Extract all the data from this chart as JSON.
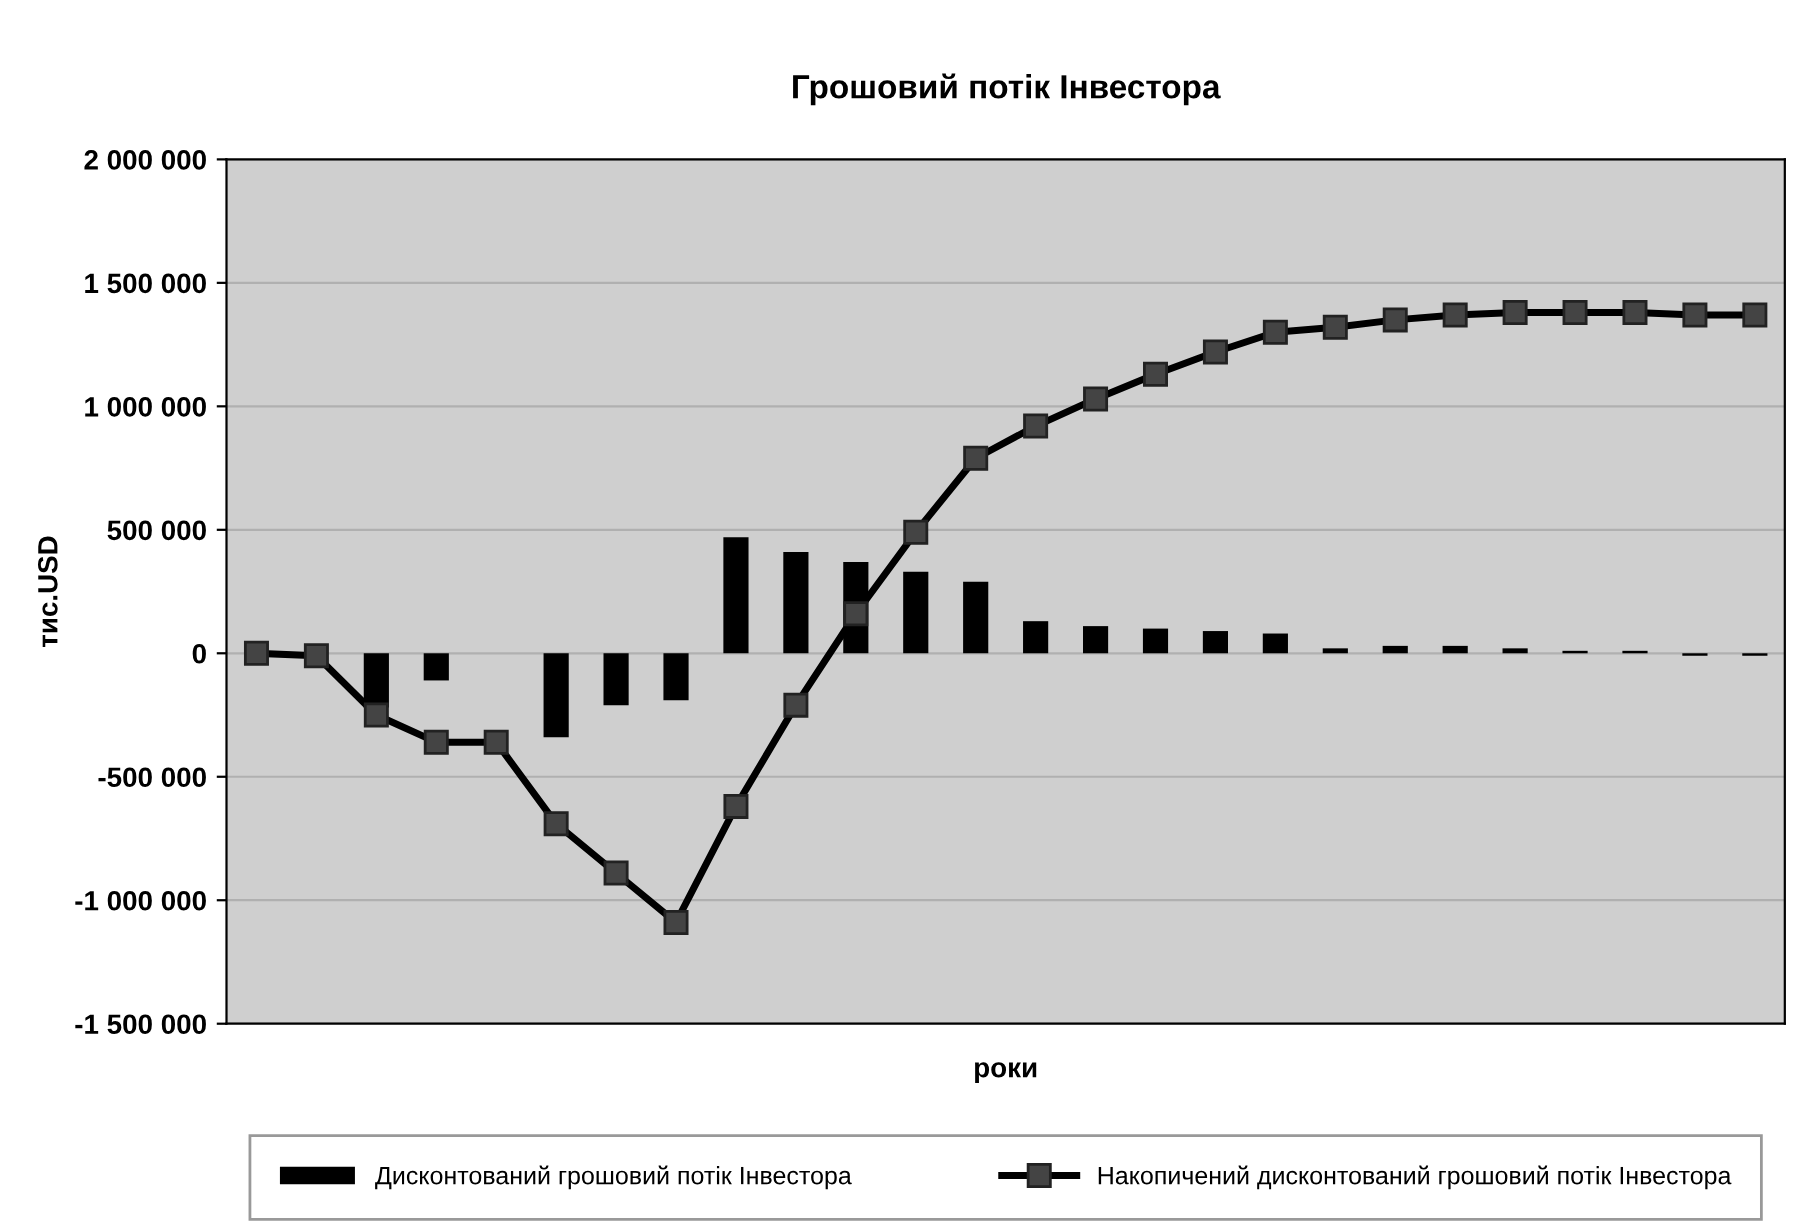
{
  "chart_data": {
    "type": "bar",
    "title": "Грошовий потік Інвестора",
    "xlabel": "роки",
    "ylabel": "тис.USD",
    "categories": [
      null,
      null,
      null,
      null,
      null,
      null,
      null,
      null,
      null,
      null,
      null,
      null,
      null,
      null,
      null,
      null,
      null,
      null,
      null,
      null,
      null,
      null,
      null,
      null,
      null,
      null
    ],
    "series": [
      {
        "name": "Дисконтований грошовий потік Інвестора",
        "color": "#000000",
        "values": [
          0,
          0,
          -220000,
          -110000,
          0,
          -340000,
          -210000,
          -190000,
          470000,
          410000,
          370000,
          330000,
          290000,
          130000,
          110000,
          100000,
          90000,
          80000,
          20000,
          30000,
          30000,
          20000,
          10000,
          10000,
          -10000,
          -10000
        ]
      },
      {
        "name": "Накопичений дисконтований грошовий потік Інвестора",
        "type": "line",
        "color": "#000000",
        "marker": "square",
        "values": [
          0,
          -10000,
          -250000,
          -360000,
          -360000,
          -690000,
          -890000,
          -1090000,
          -620000,
          -210000,
          160000,
          490000,
          790000,
          920000,
          1030000,
          1130000,
          1220000,
          1300000,
          1320000,
          1350000,
          1370000,
          1380000,
          1380000,
          1380000,
          1370000,
          1370000
        ]
      }
    ],
    "ylim": [
      -1500000,
      2000000
    ],
    "yticks": [
      {
        "value": -1500000,
        "label": "-1 500 000"
      },
      {
        "value": -1000000,
        "label": "-1 000 000"
      },
      {
        "value": -500000,
        "label": "-500 000"
      },
      0,
      {
        "value": 500000,
        "label": "500 000"
      },
      {
        "value": 1000000,
        "label": "1 000 000"
      },
      {
        "value": 1500000,
        "label": "1 500 000"
      },
      {
        "value": 2000000,
        "label": "2 000 000"
      }
    ],
    "tick_labels": "y",
    "grid": "y",
    "legend": "bottom"
  }
}
